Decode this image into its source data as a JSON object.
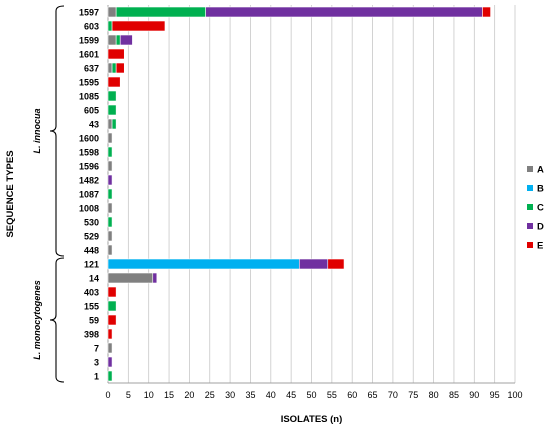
{
  "chart_data": {
    "type": "bar",
    "orientation": "horizontal",
    "stacked": true,
    "xlabel": "ISOLATES (n)",
    "ylabel": "SEQUENCE TYPES",
    "xlim": [
      0,
      100
    ],
    "x_ticks": [
      0,
      5,
      10,
      15,
      20,
      25,
      30,
      35,
      40,
      45,
      50,
      55,
      60,
      65,
      70,
      75,
      80,
      85,
      90,
      95,
      100
    ],
    "grid": true,
    "legend_position": "right",
    "categories": [
      "1597",
      "603",
      "1599",
      "1601",
      "637",
      "1595",
      "1085",
      "605",
      "43",
      "1600",
      "1598",
      "1596",
      "1482",
      "1087",
      "1008",
      "530",
      "529",
      "448",
      "121",
      "14",
      "403",
      "155",
      "59",
      "398",
      "7",
      "3",
      "1"
    ],
    "series": [
      {
        "name": "A",
        "color": "#808080",
        "values": [
          2,
          0,
          2,
          0,
          1,
          0,
          0,
          0,
          1,
          1,
          0,
          1,
          0,
          0,
          1,
          0,
          1,
          1,
          0,
          11,
          0,
          0,
          0,
          0,
          1,
          0,
          0
        ]
      },
      {
        "name": "B",
        "color": "#00B0F0",
        "values": [
          0,
          0,
          0,
          0,
          0,
          0,
          0,
          0,
          0,
          0,
          0,
          0,
          0,
          0,
          0,
          0,
          0,
          0,
          47,
          0,
          0,
          0,
          0,
          0,
          0,
          0,
          0
        ]
      },
      {
        "name": "C",
        "color": "#00B050",
        "values": [
          22,
          1,
          1,
          0,
          1,
          0,
          2,
          2,
          1,
          0,
          1,
          0,
          0,
          1,
          0,
          1,
          0,
          0,
          0,
          0,
          0,
          2,
          0,
          0,
          0,
          0,
          1
        ]
      },
      {
        "name": "D",
        "color": "#7030A0",
        "values": [
          68,
          0,
          3,
          0,
          0,
          0,
          0,
          0,
          0,
          0,
          0,
          0,
          1,
          0,
          0,
          0,
          0,
          0,
          7,
          1,
          0,
          0,
          0,
          0,
          0,
          1,
          0
        ]
      },
      {
        "name": "E",
        "color": "#E00000",
        "values": [
          2,
          13,
          0,
          4,
          2,
          3,
          0,
          0,
          0,
          0,
          0,
          0,
          0,
          0,
          0,
          0,
          0,
          0,
          4,
          0,
          2,
          0,
          2,
          1,
          0,
          0,
          0
        ]
      }
    ],
    "groups": [
      {
        "label": "L. innocua",
        "from": "1597",
        "to": "448"
      },
      {
        "label": "L. monocytogenes",
        "from": "121",
        "to": "1"
      }
    ]
  }
}
